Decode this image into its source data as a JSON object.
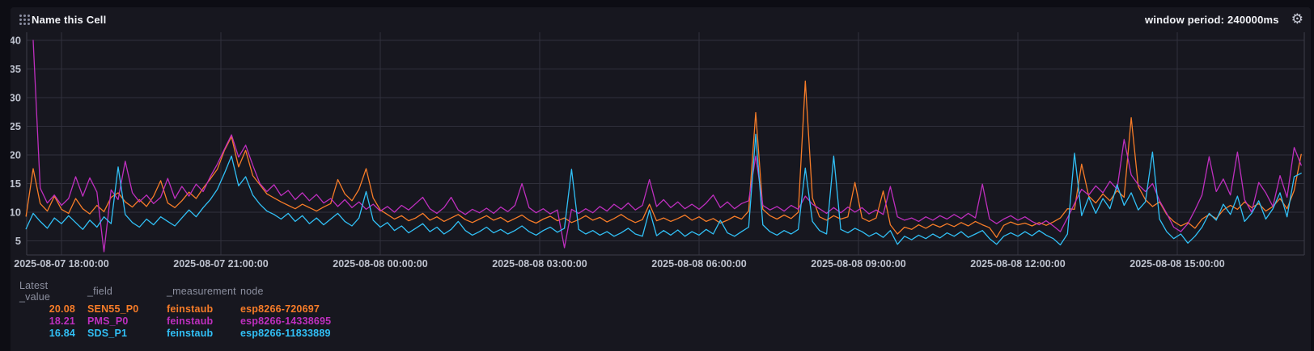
{
  "header": {
    "title": "Name this Cell",
    "window_period": "window period: 240000ms",
    "gear_glyph": "⚙"
  },
  "colors": {
    "page_background": "#0d0d14",
    "card_background": "#17171f",
    "gridline": "#30303c",
    "axis_line": "#3e3e4a",
    "axis_text": "#bec2ce",
    "legend_header_text": "#8d90a0",
    "title_text": "#f3f4f8"
  },
  "legend": {
    "headers": [
      "Latest _value",
      "_field",
      "_measurement",
      "node"
    ],
    "rows": [
      {
        "value": "20.08",
        "field": "SEN55_P0",
        "measurement": "feinstaub",
        "node": "esp8266-720697",
        "color": "#f77c28"
      },
      {
        "value": "18.21",
        "field": "PMS_P0",
        "measurement": "feinstaub",
        "node": "esp8266-14338695",
        "color": "#be2fbe"
      },
      {
        "value": "16.84",
        "field": "SDS_P1",
        "measurement": "feinstaub",
        "node": "esp8266-11833889",
        "color": "#31c0f6"
      }
    ]
  },
  "chart_data": {
    "type": "line",
    "x_start": "2025-08-07 17:20:00",
    "step_minutes": 8,
    "ylim": [
      2.5,
      41
    ],
    "grid": true,
    "legend_position": "bottom",
    "y_ticks": [
      5,
      10,
      15,
      20,
      25,
      30,
      35,
      40
    ],
    "x_ticks": [
      {
        "label": "2025-08-07 18:00:00",
        "t": 40
      },
      {
        "label": "2025-08-07 21:00:00",
        "t": 220
      },
      {
        "label": "2025-08-08 00:00:00",
        "t": 400
      },
      {
        "label": "2025-08-08 03:00:00",
        "t": 580
      },
      {
        "label": "2025-08-08 06:00:00",
        "t": 760
      },
      {
        "label": "2025-08-08 09:00:00",
        "t": 940
      },
      {
        "label": "2025-08-08 12:00:00",
        "t": 1120
      },
      {
        "label": "2025-08-08 15:00:00",
        "t": 1300
      }
    ],
    "series": [
      {
        "name": "SEN55_P0",
        "color": "#f77c28",
        "values": [
          9.3,
          17.6,
          11.5,
          10.2,
          12.8,
          10.5,
          9.8,
          12.4,
          10.6,
          9.7,
          11.2,
          10.1,
          12.6,
          13.4,
          11.8,
          10.9,
          12.2,
          11.0,
          12.8,
          15.5,
          11.6,
          10.8,
          12.0,
          13.5,
          12.4,
          14.2,
          15.8,
          17.5,
          20.8,
          23.2,
          17.9,
          20.8,
          16.4,
          14.8,
          13.2,
          12.5,
          11.8,
          11.2,
          10.6,
          11.4,
          10.8,
          10.2,
          10.9,
          11.5,
          15.7,
          13.2,
          12.0,
          14.0,
          17.6,
          12.5,
          10.4,
          9.6,
          8.8,
          9.4,
          8.5,
          9.0,
          9.8,
          8.6,
          9.2,
          8.4,
          9.0,
          9.6,
          8.7,
          8.2,
          8.8,
          9.4,
          8.6,
          9.1,
          8.3,
          8.9,
          9.5,
          8.6,
          8.1,
          8.8,
          9.3,
          8.5,
          9.0,
          8.2,
          8.7,
          9.4,
          8.6,
          9.1,
          8.3,
          8.9,
          9.6,
          8.8,
          8.2,
          8.7,
          11.4,
          8.5,
          9.0,
          8.4,
          8.9,
          9.5,
          8.6,
          9.2,
          8.4,
          8.9,
          8.1,
          8.6,
          9.3,
          8.8,
          10.2,
          27.4,
          10.5,
          9.4,
          8.8,
          9.5,
          8.9,
          10.0,
          32.9,
          12.5,
          9.2,
          8.6,
          9.4,
          8.8,
          9.2,
          15.2,
          9.0,
          8.4,
          9.0,
          13.7,
          7.8,
          6.2,
          7.4,
          7.0,
          7.8,
          7.2,
          7.9,
          7.4,
          8.0,
          7.5,
          8.2,
          7.6,
          8.4,
          7.8,
          7.3,
          5.6,
          7.7,
          8.3,
          7.8,
          8.1,
          7.6,
          8.2,
          7.7,
          8.3,
          9.0,
          10.6,
          10.5,
          18.4,
          12.8,
          11.6,
          13.2,
          12.0,
          13.8,
          12.6,
          26.5,
          14.5,
          12.2,
          11.0,
          11.8,
          9.6,
          8.4,
          7.6,
          8.2,
          7.2,
          8.8,
          9.6,
          8.9,
          10.4,
          11.2,
          10.5,
          11.8,
          10.8,
          11.5,
          10.2,
          11.0,
          12.4,
          10.6,
          13.8,
          20.1
        ]
      },
      {
        "name": "PMS_P0",
        "color": "#be2fbe",
        "values": [
          null,
          40.0,
          14.2,
          11.6,
          13.0,
          11.2,
          12.4,
          16.2,
          12.8,
          16.0,
          13.5,
          3.1,
          13.9,
          12.2,
          18.9,
          13.4,
          11.8,
          13.0,
          11.5,
          12.6,
          15.9,
          12.4,
          14.5,
          12.8,
          14.9,
          13.6,
          16.2,
          18.4,
          21.0,
          23.5,
          19.6,
          21.7,
          18.2,
          15.0,
          13.6,
          14.8,
          12.9,
          13.8,
          12.2,
          13.4,
          12.0,
          13.1,
          11.6,
          12.4,
          11.0,
          12.2,
          10.8,
          11.8,
          10.5,
          11.4,
          10.2,
          11.0,
          10.0,
          11.2,
          10.4,
          11.5,
          12.6,
          10.6,
          9.8,
          10.8,
          12.6,
          10.4,
          9.6,
          10.5,
          9.9,
          10.7,
          9.8,
          10.9,
          10.1,
          11.2,
          15.0,
          10.8,
          9.9,
          10.6,
          9.7,
          10.4,
          3.8,
          10.5,
          9.8,
          10.6,
          9.9,
          11.0,
          10.2,
          11.4,
          10.5,
          11.6,
          10.4,
          11.2,
          15.7,
          11.0,
          12.2,
          10.8,
          11.8,
          10.6,
          11.4,
          10.5,
          11.6,
          13.0,
          10.8,
          11.8,
          10.6,
          11.5,
          12.0,
          19.8,
          11.2,
          10.4,
          11.0,
          10.2,
          11.2,
          10.5,
          12.8,
          11.4,
          10.6,
          9.8,
          10.8,
          9.9,
          10.9,
          10.0,
          10.8,
          9.7,
          10.4,
          9.6,
          14.5,
          9.2,
          8.6,
          9.0,
          8.4,
          9.2,
          8.6,
          9.4,
          8.8,
          9.6,
          8.9,
          9.8,
          9.0,
          14.9,
          8.8,
          8.0,
          8.8,
          9.4,
          8.6,
          9.2,
          8.4,
          7.8,
          8.5,
          7.6,
          6.6,
          9.0,
          11.5,
          14.0,
          13.0,
          14.6,
          13.4,
          15.4,
          14.0,
          22.7,
          16.5,
          14.8,
          13.6,
          15.0,
          12.0,
          9.8,
          7.4,
          6.6,
          8.0,
          10.4,
          13.0,
          19.7,
          13.6,
          15.8,
          13.0,
          20.5,
          12.2,
          10.0,
          15.2,
          13.4,
          11.0,
          16.4,
          12.6,
          21.3,
          18.2
        ]
      },
      {
        "name": "SDS_P1",
        "color": "#31c0f6",
        "values": [
          7.1,
          9.8,
          8.4,
          7.2,
          9.0,
          8.0,
          9.4,
          8.2,
          7.0,
          8.6,
          7.4,
          9.2,
          8.0,
          17.9,
          9.6,
          8.2,
          7.4,
          8.8,
          7.8,
          9.2,
          8.4,
          7.6,
          9.0,
          10.4,
          9.2,
          10.8,
          12.2,
          14.0,
          16.8,
          19.8,
          14.6,
          16.2,
          13.0,
          11.4,
          10.2,
          9.6,
          8.8,
          9.8,
          8.4,
          9.4,
          8.0,
          9.0,
          7.8,
          8.8,
          9.8,
          8.4,
          7.6,
          9.0,
          13.6,
          8.6,
          7.4,
          8.2,
          6.8,
          7.6,
          6.4,
          7.2,
          8.0,
          6.6,
          7.4,
          6.2,
          7.0,
          8.4,
          6.8,
          6.0,
          6.6,
          7.4,
          6.4,
          7.0,
          6.2,
          6.8,
          7.6,
          6.6,
          6.0,
          6.8,
          7.4,
          6.5,
          7.2,
          17.5,
          7.0,
          6.2,
          6.8,
          6.0,
          6.6,
          5.8,
          6.4,
          7.2,
          6.2,
          5.8,
          10.4,
          5.9,
          6.8,
          6.0,
          6.9,
          5.8,
          6.6,
          6.0,
          7.0,
          6.2,
          8.6,
          6.4,
          5.8,
          6.6,
          7.4,
          23.6,
          7.8,
          6.6,
          6.0,
          6.8,
          6.2,
          7.0,
          17.7,
          8.4,
          6.8,
          6.2,
          19.8,
          7.0,
          6.4,
          7.2,
          6.6,
          5.8,
          6.4,
          5.6,
          6.8,
          4.4,
          5.8,
          5.2,
          6.0,
          5.4,
          6.2,
          5.5,
          6.4,
          5.8,
          6.6,
          5.6,
          6.2,
          6.8,
          5.4,
          4.4,
          5.8,
          6.4,
          5.8,
          6.6,
          5.9,
          6.8,
          6.0,
          5.4,
          4.3,
          6.2,
          20.3,
          9.4,
          12.6,
          9.8,
          12.4,
          10.6,
          14.8,
          11.2,
          13.4,
          10.4,
          11.8,
          20.5,
          8.8,
          6.6,
          5.4,
          6.2,
          4.6,
          5.8,
          7.4,
          9.8,
          8.6,
          11.4,
          9.6,
          12.8,
          8.4,
          9.8,
          12.0,
          8.8,
          10.6,
          13.4,
          9.2,
          16.2,
          16.8
        ]
      }
    ]
  }
}
